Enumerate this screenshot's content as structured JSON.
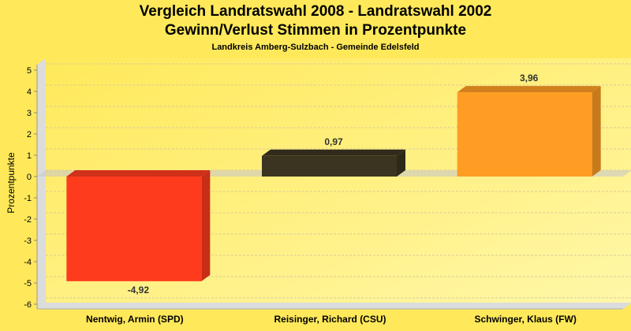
{
  "chart_data": {
    "type": "bar",
    "title": "Vergleich Landratswahl 2008 - Landratswahl 2002",
    "title2": "Gewinn/Verlust Stimmen in Prozentpunkte",
    "subtitle": "Landkreis Amberg-Sulzbach - Gemeinde Edelsfeld",
    "xlabel": "",
    "ylabel": "Prozentpunkte",
    "ylim": [
      -6,
      5
    ],
    "yticks": [
      5,
      4,
      3,
      2,
      1,
      0,
      -1,
      -2,
      -3,
      -4,
      -5,
      -6
    ],
    "grid": true,
    "categories": [
      "Nentwig, Armin (SPD)",
      "Reisinger, Richard (CSU)",
      "Schwinger, Klaus (FW)"
    ],
    "values": [
      -4.92,
      0.97,
      3.96
    ],
    "labels": [
      "-4,92",
      "0,97",
      "3,96"
    ],
    "colors": [
      "#ff3b1e",
      "#3a3420",
      "#ff9c24"
    ]
  }
}
